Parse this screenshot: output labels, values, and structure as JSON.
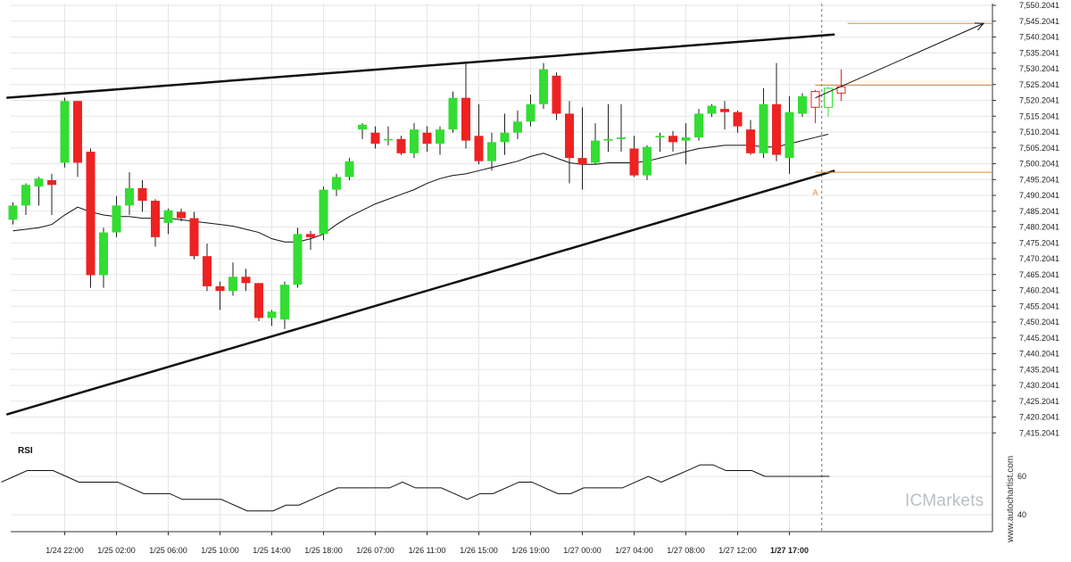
{
  "chart_data": {
    "type": "candlestick",
    "colors": {
      "up": "#33dd33",
      "down": "#ee2222",
      "pattern": "#111111",
      "levels": "#e08a3c",
      "ma": "#111111",
      "rsi": "#111111"
    },
    "y_ticks": [
      "7,550.2041",
      "7,545.2041",
      "7,540.2041",
      "7,535.2041",
      "7,530.2041",
      "7,525.2041",
      "7,520.2041",
      "7,515.2041",
      "7,510.2041",
      "7,505.2041",
      "7,500.2041",
      "7,495.2041",
      "7,490.2041",
      "7,485.2041",
      "7,480.2041",
      "7,475.2041",
      "7,470.2041",
      "7,465.2041",
      "7,460.2041",
      "7,455.2041",
      "7,450.2041",
      "7,445.2041",
      "7,440.2041",
      "7,435.2041",
      "7,430.2041",
      "7,425.2041",
      "7,420.2041",
      "7,415.2041"
    ],
    "x_labels": [
      "1/24 22:00",
      "1/25 02:00",
      "1/25 06:00",
      "1/25 10:00",
      "1/25 14:00",
      "1/25 18:00",
      "1/26 07:00",
      "1/26 11:00",
      "1/26 15:00",
      "1/26 19:00",
      "1/27 00:00",
      "1/27 04:00",
      "1/27 08:00",
      "1/27 12:00",
      "1/27 17:00"
    ],
    "x_label_index": [
      4,
      8,
      12,
      16,
      20,
      24,
      28,
      32,
      36,
      40,
      44,
      48,
      52,
      56,
      60
    ],
    "candles": [
      [
        7482.5,
        7488.0,
        7481.0,
        7487.0
      ],
      [
        7487.0,
        7494.0,
        7484.0,
        7493.5
      ],
      [
        7493.0,
        7496.0,
        7487.0,
        7495.5
      ],
      [
        7495.0,
        7497.0,
        7484.0,
        7493.5
      ],
      [
        7500.5,
        7521.0,
        7499.0,
        7520.0
      ],
      [
        7520.0,
        7520.0,
        7496.0,
        7500.5
      ],
      [
        7504.0,
        7505.0,
        7461.0,
        7465.0
      ],
      [
        7465.0,
        7480.0,
        7461.0,
        7478.5
      ],
      [
        7478.5,
        7490.0,
        7477.0,
        7487.0
      ],
      [
        7487.0,
        7497.5,
        7484.0,
        7492.5
      ],
      [
        7492.5,
        7495.0,
        7485.0,
        7488.5
      ],
      [
        7488.5,
        7489.0,
        7474.0,
        7477.0
      ],
      [
        7481.5,
        7486.0,
        7478.0,
        7485.5
      ],
      [
        7485.0,
        7486.0,
        7482.0,
        7483.0
      ],
      [
        7483.0,
        7485.0,
        7470.0,
        7471.0
      ],
      [
        7471.0,
        7475.0,
        7460.0,
        7461.5
      ],
      [
        7461.5,
        7463.0,
        7454.0,
        7460.0
      ],
      [
        7460.0,
        7469.0,
        7458.5,
        7464.5
      ],
      [
        7464.5,
        7467.0,
        7460.0,
        7462.5
      ],
      [
        7462.5,
        7462.5,
        7450.5,
        7451.5
      ],
      [
        7451.5,
        7454.0,
        7449.0,
        7453.5
      ],
      [
        7451.0,
        7463.0,
        7448.0,
        7462.0
      ],
      [
        7462.0,
        7480.0,
        7461.0,
        7478.0
      ],
      [
        7478.0,
        7479.0,
        7473.0,
        7477.0
      ],
      [
        7478.0,
        7493.0,
        7476.0,
        7492.0
      ],
      [
        7492.0,
        7497.0,
        7490.0,
        7496.0
      ],
      [
        7496.0,
        7502.0,
        7495.0,
        7501.0
      ],
      [
        7511.0,
        7513.0,
        7508.0,
        7512.5
      ],
      [
        7510.0,
        7512.0,
        7505.0,
        7506.5
      ],
      [
        7508.0,
        7512.0,
        7506.0,
        7508.0
      ],
      [
        7508.0,
        7509.0,
        7503.0,
        7503.5
      ],
      [
        7503.5,
        7513.0,
        7502.0,
        7511.0
      ],
      [
        7510.0,
        7512.0,
        7504.0,
        7506.5
      ],
      [
        7506.5,
        7512.0,
        7503.0,
        7511.0
      ],
      [
        7511.0,
        7523.0,
        7510.0,
        7521.0
      ],
      [
        7521.0,
        7532.0,
        7505.0,
        7507.5
      ],
      [
        7509.0,
        7519.0,
        7500.0,
        7501.0
      ],
      [
        7501.0,
        7510.0,
        7498.0,
        7507.0
      ],
      [
        7507.0,
        7516.0,
        7503.0,
        7510.0
      ],
      [
        7510.0,
        7517.0,
        7508.0,
        7513.5
      ],
      [
        7513.5,
        7522.0,
        7512.0,
        7519.0
      ],
      [
        7519.0,
        7532.0,
        7517.5,
        7530.0
      ],
      [
        7528.0,
        7529.0,
        7514.0,
        7516.0
      ],
      [
        7516.0,
        7520.0,
        7494.0,
        7502.0
      ],
      [
        7502.0,
        7518.0,
        7492.0,
        7500.0
      ],
      [
        7500.5,
        7513.0,
        7500.0,
        7507.5
      ],
      [
        7507.5,
        7519.0,
        7504.0,
        7508.0
      ],
      [
        7508.0,
        7519.0,
        7504.0,
        7508.5
      ],
      [
        7505.0,
        7509.0,
        7496.0,
        7496.5
      ],
      [
        7496.5,
        7506.0,
        7495.0,
        7505.5
      ],
      [
        7508.5,
        7510.0,
        7504.0,
        7509.0
      ],
      [
        7509.0,
        7510.5,
        7504.0,
        7507.0
      ],
      [
        7507.5,
        7513.0,
        7500.0,
        7508.5
      ],
      [
        7508.5,
        7517.5,
        7507.5,
        7516.0
      ],
      [
        7516.0,
        7519.0,
        7515.0,
        7518.5
      ],
      [
        7517.5,
        7520.0,
        7511.0,
        7516.5
      ],
      [
        7516.5,
        7517.0,
        7510.0,
        7512.0
      ],
      [
        7511.0,
        7514.0,
        7503.0,
        7503.5
      ],
      [
        7503.5,
        7524.0,
        7502.0,
        7519.0
      ],
      [
        7519.0,
        7532.0,
        7501.0,
        7503.0
      ],
      [
        7502.0,
        7521.5,
        7497.0,
        7516.5
      ],
      [
        7516.0,
        7522.5,
        7515.0,
        7521.5
      ]
    ],
    "projected_candles": [
      [
        7523.0,
        7523.5,
        7513.0,
        7518.0
      ],
      [
        7518.0,
        7524.5,
        7515.0,
        7524.0
      ],
      [
        7524.5,
        7530.0,
        7520.0,
        7522.5
      ]
    ],
    "moving_average": [
      7479.0,
      7479.5,
      7480.0,
      7481.0,
      7484.0,
      7486.5,
      7485.0,
      7484.0,
      7483.5,
      7483.5,
      7483.0,
      7483.0,
      7483.0,
      7482.5,
      7482.0,
      7481.5,
      7481.0,
      7480.5,
      7479.5,
      7478.5,
      7476.5,
      7475.5,
      7475.5,
      7476.5,
      7478.0,
      7481.0,
      7483.5,
      7485.5,
      7487.5,
      7489.0,
      7490.5,
      7492.0,
      7494.0,
      7495.5,
      7496.5,
      7497.0,
      7498.0,
      7499.0,
      7500.0,
      7501.0,
      7502.5,
      7503.5,
      7502.0,
      7500.5,
      7500.0,
      7500.0,
      7500.5,
      7500.5,
      7500.5,
      7501.0,
      7502.0,
      7503.0,
      7504.0,
      7505.0,
      7505.5,
      7506.0,
      7506.0,
      7506.0,
      7505.5,
      7505.5,
      7506.5,
      7507.5,
      7508.5,
      7509.5
    ],
    "pattern_upper": [
      [
        -0.5,
        7521.0
      ],
      [
        63.5,
        7541.0
      ]
    ],
    "pattern_lower": [
      [
        -0.5,
        7421.0
      ],
      [
        63.5,
        7498.0
      ]
    ],
    "projection_arrow": [
      [
        62.0,
        7521.0
      ],
      [
        75.0,
        7544.5
      ]
    ],
    "target_level": 7544.5,
    "level_mid": 7525.0,
    "level_low": 7497.5,
    "level_mid_start_index": 62,
    "breakout_index": 62.5,
    "marker_label": "A",
    "marker": {
      "index": 62.0,
      "price": 7493.0
    },
    "rsi_label": "RSI",
    "rsi_ticks": [
      "60",
      "40"
    ],
    "rsi": [
      57,
      60,
      63,
      63,
      63,
      60,
      57,
      57,
      57,
      57,
      54,
      51,
      51,
      51,
      48,
      48,
      48,
      48,
      45,
      42,
      42,
      42,
      45,
      45,
      48,
      51,
      54,
      54,
      54,
      54,
      54,
      57,
      54,
      54,
      54,
      51,
      48,
      51,
      51,
      54,
      57,
      57,
      54,
      51,
      51,
      54,
      54,
      54,
      54,
      57,
      60,
      57,
      60,
      63,
      66,
      66,
      63,
      63,
      63,
      60,
      60,
      60,
      60,
      60,
      60
    ],
    "watermark": "ICMarkets",
    "credit": "www.autochartist.com"
  }
}
